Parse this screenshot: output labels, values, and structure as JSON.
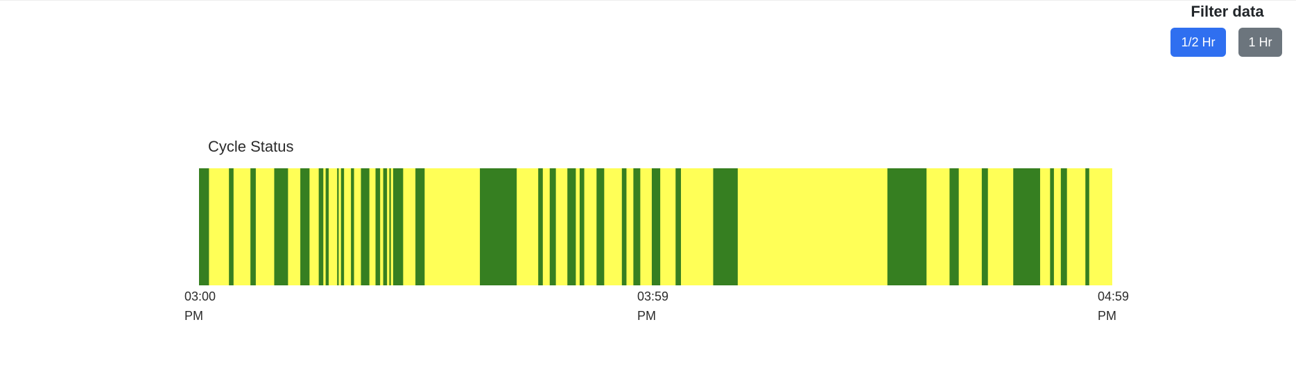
{
  "filter": {
    "title": "Filter data",
    "buttons": [
      {
        "label": "1/2 Hr",
        "color": "#2f6ff0"
      },
      {
        "label": "1 Hr",
        "color": "#6c757d"
      }
    ]
  },
  "chart_data": {
    "type": "timeline",
    "title": "Cycle Status",
    "x_range": [
      "03:00 PM",
      "04:59 PM"
    ],
    "x_range_minutes": [
      0,
      119
    ],
    "tick_labels": [
      {
        "time": "03:00",
        "ampm": "PM",
        "minute": 0
      },
      {
        "time": "03:59",
        "ampm": "PM",
        "minute": 59
      },
      {
        "time": "04:59",
        "ampm": "PM",
        "minute": 119
      }
    ],
    "colors": {
      "green": "#367f21",
      "yellow": "#ffff57"
    },
    "background_state": "yellow",
    "green_intervals_minutes": [
      [
        0.0,
        1.3
      ],
      [
        3.9,
        4.5
      ],
      [
        6.7,
        7.4
      ],
      [
        9.8,
        11.6
      ],
      [
        13.2,
        14.4
      ],
      [
        15.6,
        16.2
      ],
      [
        16.5,
        16.9
      ],
      [
        18.0,
        18.2
      ],
      [
        18.5,
        18.9
      ],
      [
        19.8,
        20.2
      ],
      [
        21.1,
        22.2
      ],
      [
        23.0,
        23.6
      ],
      [
        24.0,
        24.5
      ],
      [
        24.8,
        25.0
      ],
      [
        25.3,
        26.6
      ],
      [
        28.2,
        29.4
      ],
      [
        36.6,
        41.4
      ],
      [
        44.2,
        44.8
      ],
      [
        45.7,
        46.5
      ],
      [
        48.0,
        49.1
      ],
      [
        49.6,
        50.2
      ],
      [
        51.8,
        52.8
      ],
      [
        55.1,
        55.7
      ],
      [
        56.6,
        57.5
      ],
      [
        59.0,
        60.1
      ],
      [
        62.1,
        62.8
      ],
      [
        67.0,
        70.2
      ],
      [
        89.7,
        94.8
      ],
      [
        97.8,
        99.0
      ],
      [
        102.0,
        102.8
      ],
      [
        106.1,
        109.6
      ],
      [
        110.9,
        111.4
      ],
      [
        112.3,
        113.1
      ],
      [
        115.5,
        116.0
      ]
    ]
  }
}
